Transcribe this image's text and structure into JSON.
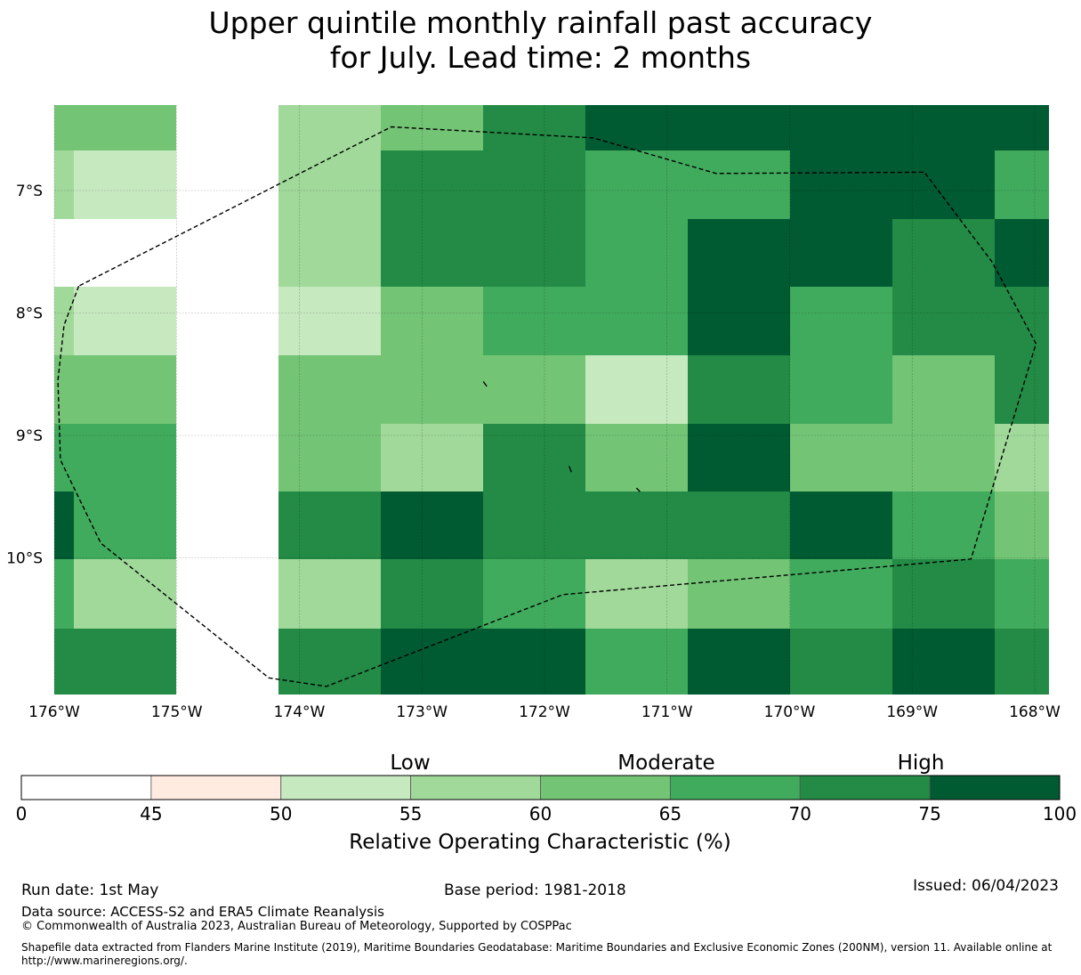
{
  "title": {
    "line1": "Upper quintile monthly rainfall past accuracy",
    "line2": "for July. Lead time: 2 months"
  },
  "map": {
    "lon_range": [
      -176,
      -167.9
    ],
    "lat_range": [
      -11.1,
      -6.3
    ],
    "lat_labels": [
      "7°S",
      "8°S",
      "9°S",
      "10°S"
    ],
    "lon_labels": [
      "176°W",
      "175°W",
      "174°W",
      "173°W",
      "172°W",
      "171°W",
      "170°W",
      "169°W",
      "168°W"
    ],
    "colors": {
      "nodata": "#ffffff",
      "c45_50": "#ffebe0",
      "c50_55": "#c7e9c0",
      "c55_60": "#a1d99b",
      "c60_65": "#74c476",
      "c65_70": "#41ab5d",
      "c70_75": "#238b45",
      "c75_100": "#005a32"
    },
    "grid_rows": [
      [
        "c60_65",
        "c55_60",
        "c60_65",
        "c70_75",
        "c75_100",
        "c75_100",
        "c75_100",
        "c75_100",
        "c75_100"
      ],
      [
        "c50_55",
        "c55_60",
        "c70_75",
        "c70_75",
        "c65_70",
        "c65_70",
        "c75_100",
        "c75_100",
        "c65_70"
      ],
      [
        "nodata",
        "c55_60",
        "c70_75",
        "c70_75",
        "c65_70",
        "c75_100",
        "c75_100",
        "c70_75",
        "c75_100"
      ],
      [
        "c50_55",
        "c50_55",
        "c60_65",
        "c65_70",
        "c65_70",
        "c75_100",
        "c65_70",
        "c70_75",
        "c70_75"
      ],
      [
        "c60_65",
        "c60_65",
        "c60_65",
        "c60_65",
        "c50_55",
        "c70_75",
        "c65_70",
        "c60_65",
        "c70_75"
      ],
      [
        "c65_70",
        "c60_65",
        "c55_60",
        "c70_75",
        "c60_65",
        "c75_100",
        "c60_65",
        "c60_65",
        "c55_60"
      ],
      [
        "c65_70",
        "c70_75",
        "c75_100",
        "c70_75",
        "c70_75",
        "c70_75",
        "c75_100",
        "c65_70",
        "c60_65"
      ],
      [
        "c55_60",
        "c55_60",
        "c70_75",
        "c65_70",
        "c55_60",
        "c60_65",
        "c65_70",
        "c70_75",
        "c65_70"
      ],
      [
        "c70_75",
        "c70_75",
        "c75_100",
        "c75_100",
        "c65_70",
        "c75_100",
        "c70_75",
        "c75_100",
        "c70_75"
      ]
    ],
    "edge_cells": [
      {
        "row": 1,
        "col": 0,
        "color": "c55_60"
      },
      {
        "row": 3,
        "col": 0,
        "color": "c55_60"
      },
      {
        "row": 5,
        "col": 0,
        "color": "c65_70"
      },
      {
        "row": 6,
        "col": 0,
        "color": "c75_100"
      },
      {
        "row": 7,
        "col": 0,
        "color": "c65_70"
      }
    ],
    "boundary": [
      [
        -175.8,
        -7.78
      ],
      [
        -175.92,
        -8.1
      ],
      [
        -175.97,
        -8.55
      ],
      [
        -175.95,
        -9.2
      ],
      [
        -175.62,
        -9.88
      ],
      [
        -174.25,
        -10.98
      ],
      [
        -173.78,
        -11.05
      ],
      [
        -171.85,
        -10.3
      ],
      [
        -168.52,
        -10.01
      ],
      [
        -167.99,
        -8.25
      ],
      [
        -168.35,
        -7.58
      ],
      [
        -168.9,
        -6.85
      ],
      [
        -170.6,
        -6.86
      ],
      [
        -171.6,
        -6.57
      ],
      [
        -173.25,
        -6.48
      ],
      [
        -175.8,
        -7.78
      ]
    ],
    "islands": [
      [
        [
          -172.5,
          -8.56
        ],
        [
          -172.47,
          -8.6
        ]
      ],
      [
        [
          -171.8,
          -9.25
        ],
        [
          -171.78,
          -9.3
        ]
      ],
      [
        [
          -171.25,
          -9.43
        ],
        [
          -171.22,
          -9.46
        ]
      ]
    ]
  },
  "legend": {
    "category_labels": [
      "Low",
      "Moderate",
      "High"
    ],
    "bins": [
      {
        "from": 0,
        "to": 45,
        "color": "#ffffff"
      },
      {
        "from": 45,
        "to": 50,
        "color": "#ffebe0"
      },
      {
        "from": 50,
        "to": 55,
        "color": "#c7e9c0"
      },
      {
        "from": 55,
        "to": 60,
        "color": "#a1d99b"
      },
      {
        "from": 60,
        "to": 65,
        "color": "#74c476"
      },
      {
        "from": 65,
        "to": 70,
        "color": "#41ab5d"
      },
      {
        "from": 70,
        "to": 75,
        "color": "#238b45"
      },
      {
        "from": 75,
        "to": 100,
        "color": "#005a32"
      }
    ],
    "tick_labels": [
      "0",
      "45",
      "50",
      "55",
      "60",
      "65",
      "70",
      "75",
      "100"
    ],
    "axis_label": "Relative Operating Characteristic (%)"
  },
  "footer": {
    "run_date": "Run date: 1st May",
    "base_period": "Base period: 1981-2018",
    "issued": "Issued: 06/04/2023",
    "data_source": "Data source: ACCESS-S2 and ERA5 Climate Reanalysis",
    "copyright": "© Commonwealth of Australia 2023, Australian Bureau of Meteorology, Supported by COSPPac",
    "shapefile_line1": "Shapefile data extracted from Flanders Marine Institute (2019), Maritime Boundaries Geodatabase: Maritime Boundaries and Exclusive Economic Zones (200NM), version 11. Available online at",
    "shapefile_line2": "http://www.marineregions.org/."
  }
}
